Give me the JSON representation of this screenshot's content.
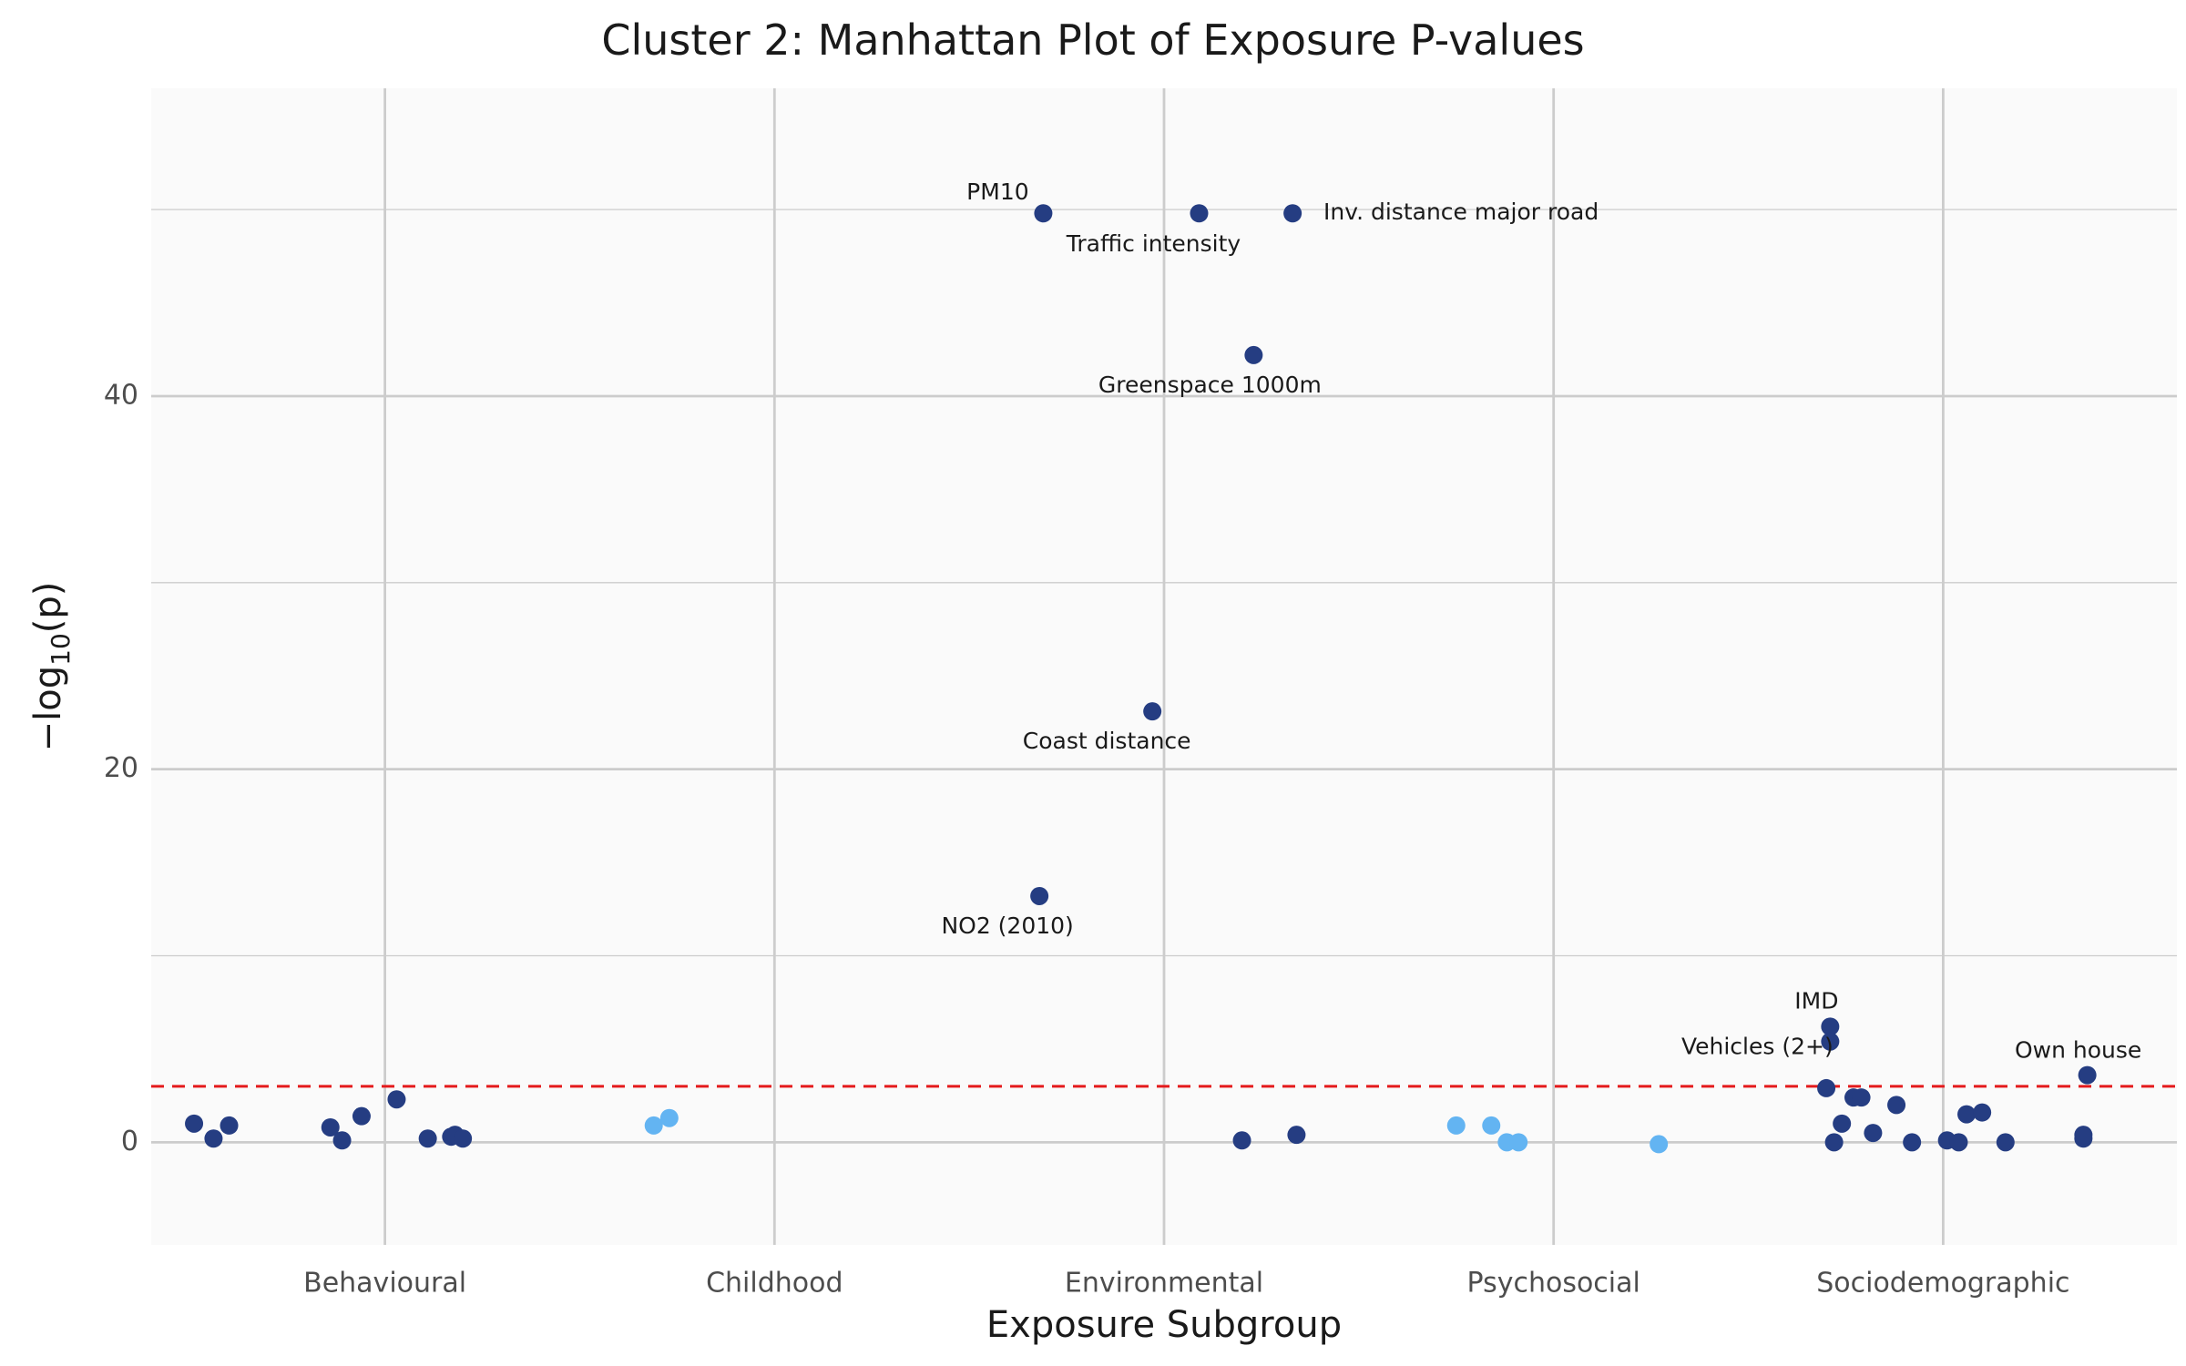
{
  "chart_data": {
    "type": "scatter",
    "title": "Cluster 2: Manhattan Plot of Exposure P-values",
    "xlabel": "Exposure Subgroup",
    "ylabel": "−log",
    "ylabel_sub": "10",
    "ylabel_tail": "(p)",
    "categories": [
      "Behavioural",
      "Childhood",
      "Environmental",
      "Psychosocial",
      "Sociodemographic"
    ],
    "ylim": [
      -5.5,
      56.5
    ],
    "yticks": [
      0,
      20,
      40
    ],
    "threshold": 3.0,
    "grid": true,
    "colors": {
      "dark": "#253d82",
      "light": "#63b4f2",
      "threshold": "#e41a1c",
      "panel": "#fafafa",
      "grid": "#cccccc"
    },
    "points": [
      {
        "x": 0.51,
        "y": 1.0,
        "c": "dark"
      },
      {
        "x": 0.56,
        "y": 0.2,
        "c": "dark"
      },
      {
        "x": 0.6,
        "y": 0.9,
        "c": "dark"
      },
      {
        "x": 0.86,
        "y": 0.8,
        "c": "dark"
      },
      {
        "x": 0.89,
        "y": 0.1,
        "c": "dark"
      },
      {
        "x": 0.94,
        "y": 1.4,
        "c": "dark"
      },
      {
        "x": 1.03,
        "y": 2.3,
        "c": "dark"
      },
      {
        "x": 1.11,
        "y": 0.2,
        "c": "dark"
      },
      {
        "x": 1.17,
        "y": 0.3,
        "c": "dark"
      },
      {
        "x": 1.18,
        "y": 0.4,
        "c": "dark"
      },
      {
        "x": 1.2,
        "y": 0.2,
        "c": "dark"
      },
      {
        "x": 1.69,
        "y": 0.9,
        "c": "light"
      },
      {
        "x": 1.73,
        "y": 1.3,
        "c": "light"
      },
      {
        "x": 2.68,
        "y": 13.2,
        "c": "dark",
        "label": "NO2 (2010)",
        "dx": -35,
        "dy": 34
      },
      {
        "x": 2.69,
        "y": 49.8,
        "c": "dark",
        "label": "PM10",
        "dx": -50,
        "dy": -22
      },
      {
        "x": 2.97,
        "y": 23.1,
        "c": "dark",
        "label": "Coast distance",
        "dx": -50,
        "dy": 34
      },
      {
        "x": 3.09,
        "y": 49.8,
        "c": "dark",
        "label": "Traffic intensity",
        "dx": -50,
        "dy": 35
      },
      {
        "x": 3.2,
        "y": 0.1,
        "c": "dark"
      },
      {
        "x": 3.23,
        "y": 42.2,
        "c": "dark",
        "label": "Greenspace 1000m",
        "dx": -48,
        "dy": 34
      },
      {
        "x": 3.33,
        "y": 49.8,
        "c": "dark",
        "label": "Inv. distance major road",
        "dx": 185,
        "dy": 0
      },
      {
        "x": 3.34,
        "y": 0.4,
        "c": "dark"
      },
      {
        "x": 3.75,
        "y": 0.9,
        "c": "light"
      },
      {
        "x": 3.84,
        "y": 0.9,
        "c": "light"
      },
      {
        "x": 3.88,
        "y": 0.0,
        "c": "light"
      },
      {
        "x": 3.91,
        "y": 0.0,
        "c": "light"
      },
      {
        "x": 4.27,
        "y": -0.1,
        "c": "light"
      },
      {
        "x": 4.7,
        "y": 2.9,
        "c": "dark"
      },
      {
        "x": 4.71,
        "y": 6.2,
        "c": "dark",
        "label": "IMD",
        "dx": -15,
        "dy": -27
      },
      {
        "x": 4.71,
        "y": 5.4,
        "c": "dark",
        "label": "Vehicles (2+)",
        "dx": -80,
        "dy": 7
      },
      {
        "x": 4.72,
        "y": 0.0,
        "c": "dark"
      },
      {
        "x": 4.74,
        "y": 1.0,
        "c": "dark"
      },
      {
        "x": 4.77,
        "y": 2.4,
        "c": "dark"
      },
      {
        "x": 4.79,
        "y": 2.4,
        "c": "dark"
      },
      {
        "x": 4.82,
        "y": 0.5,
        "c": "dark"
      },
      {
        "x": 4.88,
        "y": 2.0,
        "c": "dark"
      },
      {
        "x": 4.92,
        "y": 0.0,
        "c": "dark"
      },
      {
        "x": 5.01,
        "y": 0.1,
        "c": "dark"
      },
      {
        "x": 5.04,
        "y": 0.0,
        "c": "dark"
      },
      {
        "x": 5.06,
        "y": 1.5,
        "c": "dark"
      },
      {
        "x": 5.1,
        "y": 1.6,
        "c": "dark"
      },
      {
        "x": 5.16,
        "y": 0.0,
        "c": "dark"
      },
      {
        "x": 5.36,
        "y": 0.2,
        "c": "dark"
      },
      {
        "x": 5.36,
        "y": 0.4,
        "c": "dark"
      },
      {
        "x": 5.37,
        "y": 3.6,
        "c": "dark",
        "label": "Own house",
        "dx": -10,
        "dy": -26
      }
    ]
  }
}
